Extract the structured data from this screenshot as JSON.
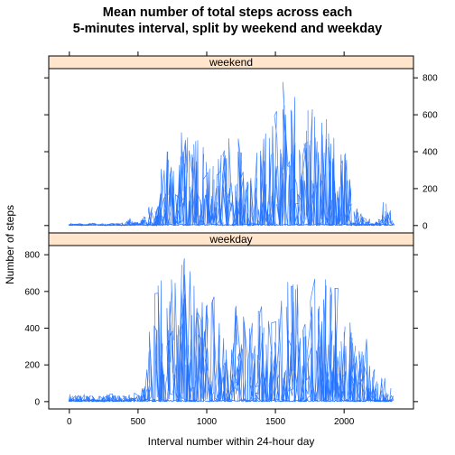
{
  "chart_data": {
    "type": "line",
    "title_line1": "Mean number of total steps across each",
    "title_line2": "5-minutes interval, split by weekend and weekday",
    "xlabel": "Interval number within 24-hour day",
    "ylabel": "Number of steps",
    "xlim": [
      -150,
      2505
    ],
    "ylim": [
      -40,
      850
    ],
    "x_ticks": [
      0,
      500,
      1000,
      1500,
      2000
    ],
    "y_ticks": [
      0,
      200,
      400,
      600,
      800
    ],
    "series_color": "#1E6FFF",
    "strip_color": "#FFE5CC",
    "panels": [
      {
        "name": "weekend",
        "y_axis_side": "right",
        "envelope": [
          [
            0,
            8
          ],
          [
            100,
            12
          ],
          [
            200,
            10
          ],
          [
            300,
            12
          ],
          [
            400,
            12
          ],
          [
            450,
            45
          ],
          [
            500,
            12
          ],
          [
            550,
            50
          ],
          [
            600,
            120
          ],
          [
            650,
            220
          ],
          [
            700,
            450
          ],
          [
            750,
            300
          ],
          [
            800,
            530
          ],
          [
            850,
            545
          ],
          [
            900,
            520
          ],
          [
            950,
            480
          ],
          [
            1000,
            400
          ],
          [
            1050,
            300
          ],
          [
            1100,
            420
          ],
          [
            1150,
            480
          ],
          [
            1200,
            520
          ],
          [
            1250,
            550
          ],
          [
            1300,
            520
          ],
          [
            1350,
            480
          ],
          [
            1400,
            500
          ],
          [
            1450,
            520
          ],
          [
            1500,
            620
          ],
          [
            1550,
            790
          ],
          [
            1600,
            795
          ],
          [
            1650,
            700
          ],
          [
            1700,
            420
          ],
          [
            1750,
            780
          ],
          [
            1800,
            560
          ],
          [
            1850,
            600
          ],
          [
            1900,
            540
          ],
          [
            1950,
            530
          ],
          [
            2000,
            430
          ],
          [
            2050,
            200
          ],
          [
            2100,
            90
          ],
          [
            2150,
            40
          ],
          [
            2200,
            40
          ],
          [
            2250,
            30
          ],
          [
            2300,
            170
          ],
          [
            2355,
            40
          ]
        ]
      },
      {
        "name": "weekday",
        "y_axis_side": "left",
        "envelope": [
          [
            0,
            40
          ],
          [
            100,
            40
          ],
          [
            200,
            35
          ],
          [
            300,
            45
          ],
          [
            400,
            30
          ],
          [
            450,
            55
          ],
          [
            500,
            55
          ],
          [
            550,
            100
          ],
          [
            600,
            790
          ],
          [
            650,
            780
          ],
          [
            700,
            700
          ],
          [
            750,
            720
          ],
          [
            800,
            780
          ],
          [
            850,
            790
          ],
          [
            900,
            760
          ],
          [
            950,
            560
          ],
          [
            1000,
            540
          ],
          [
            1050,
            580
          ],
          [
            1100,
            480
          ],
          [
            1150,
            500
          ],
          [
            1200,
            550
          ],
          [
            1250,
            520
          ],
          [
            1300,
            500
          ],
          [
            1350,
            560
          ],
          [
            1400,
            560
          ],
          [
            1450,
            520
          ],
          [
            1500,
            640
          ],
          [
            1550,
            720
          ],
          [
            1600,
            740
          ],
          [
            1650,
            660
          ],
          [
            1700,
            720
          ],
          [
            1750,
            690
          ],
          [
            1800,
            700
          ],
          [
            1850,
            720
          ],
          [
            1900,
            660
          ],
          [
            1950,
            620
          ],
          [
            2000,
            480
          ],
          [
            2050,
            450
          ],
          [
            2100,
            300
          ],
          [
            2150,
            380
          ],
          [
            2200,
            180
          ],
          [
            2250,
            320
          ],
          [
            2300,
            100
          ],
          [
            2355,
            80
          ]
        ]
      }
    ]
  }
}
